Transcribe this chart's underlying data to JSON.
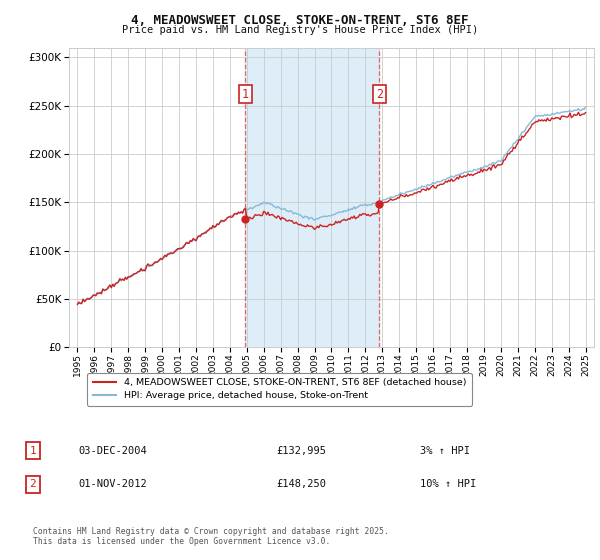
{
  "title": "4, MEADOWSWEET CLOSE, STOKE-ON-TRENT, ST6 8EF",
  "subtitle": "Price paid vs. HM Land Registry's House Price Index (HPI)",
  "background_color": "#ffffff",
  "plot_background": "#ffffff",
  "grid_color": "#cccccc",
  "shaded_region_color": "#ddeef8",
  "dashed_line_color": "#dd6666",
  "property_color": "#cc2222",
  "hpi_color": "#88b8d8",
  "sale1_date": 2004.92,
  "sale1_price": 132995,
  "sale1_label": "1",
  "sale2_date": 2012.83,
  "sale2_price": 148250,
  "sale2_label": "2",
  "legend_line1": "4, MEADOWSWEET CLOSE, STOKE-ON-TRENT, ST6 8EF (detached house)",
  "legend_line2": "HPI: Average price, detached house, Stoke-on-Trent",
  "table_row1_num": "1",
  "table_row1_date": "03-DEC-2004",
  "table_row1_price": "£132,995",
  "table_row1_hpi": "3% ↑ HPI",
  "table_row2_num": "2",
  "table_row2_date": "01-NOV-2012",
  "table_row2_price": "£148,250",
  "table_row2_hpi": "10% ↑ HPI",
  "footer": "Contains HM Land Registry data © Crown copyright and database right 2025.\nThis data is licensed under the Open Government Licence v3.0.",
  "ylim_min": 0,
  "ylim_max": 310000,
  "xlim_min": 1994.5,
  "xlim_max": 2025.5
}
